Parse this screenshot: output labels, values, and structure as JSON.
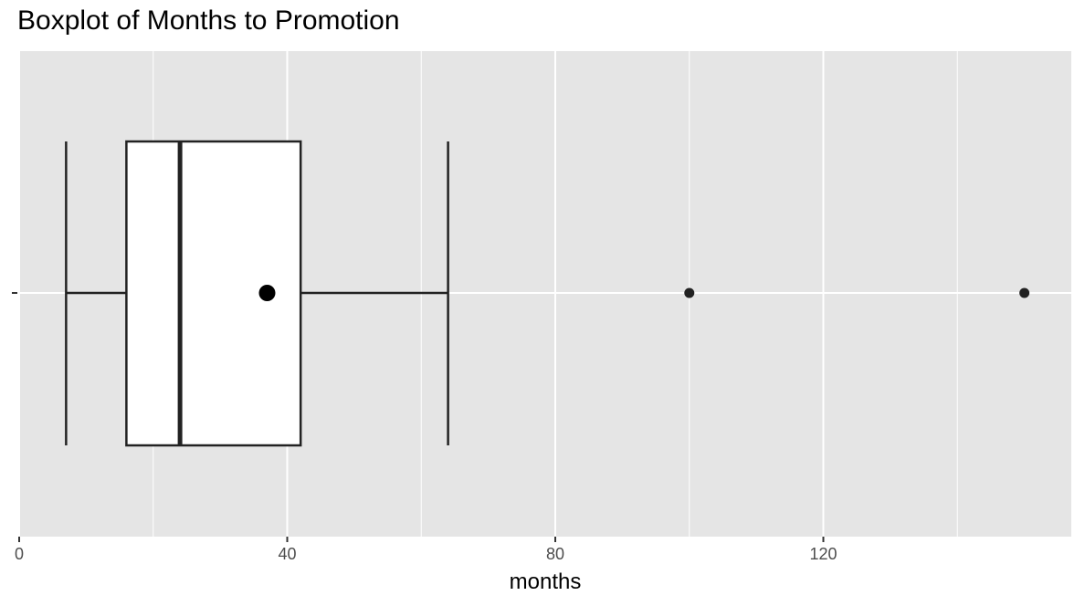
{
  "chart_data": {
    "type": "boxplot",
    "title": "Boxplot of Months to Promotion",
    "xlabel": "months",
    "ylabel": "",
    "xlim": [
      0,
      157
    ],
    "x_ticks": [
      0,
      40,
      80,
      120
    ],
    "x_minor_gridlines": [
      20,
      60,
      100,
      140
    ],
    "grid": true,
    "background": "#e5e5e5",
    "box": {
      "whisker_low": 7,
      "q1": 16,
      "median": 24,
      "q3": 42,
      "whisker_high": 64,
      "mean": 37,
      "outliers": [
        100,
        150
      ]
    },
    "colors": {
      "panel": "#e5e5e5",
      "grid": "#ffffff",
      "box_fill": "#ffffff",
      "box_stroke": "#222222",
      "point": "#222222",
      "mean_point": "#000000"
    }
  }
}
